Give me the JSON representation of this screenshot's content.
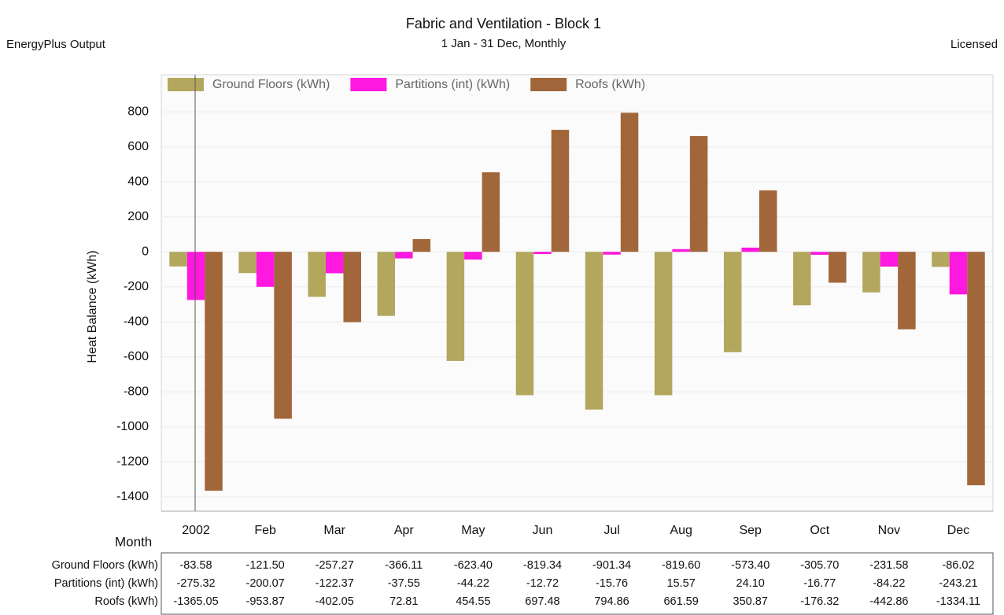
{
  "chart_data": {
    "type": "bar",
    "title": "Fabric and Ventilation - Block 1",
    "subtitle": "1 Jan - 31 Dec, Monthly",
    "header_left": "EnergyPlus Output",
    "header_right": "Licensed",
    "x_label": "Month",
    "y_label": "Heat Balance (kWh)",
    "categories": [
      "2002",
      "Feb",
      "Mar",
      "Apr",
      "May",
      "Jun",
      "Jul",
      "Aug",
      "Sep",
      "Oct",
      "Nov",
      "Dec"
    ],
    "series": [
      {
        "name": "Ground Floors (kWh)",
        "color": "#b3a75e",
        "values": [
          -83.58,
          -121.5,
          -257.27,
          -366.11,
          -623.4,
          -819.34,
          -901.34,
          -819.6,
          -573.4,
          -305.7,
          -231.58,
          -86.02
        ],
        "value_labels": [
          "-83.58",
          "-121.50",
          "-257.27",
          "-366.11",
          "-623.40",
          "-819.34",
          "-901.34",
          "-819.60",
          "-573.40",
          "-305.70",
          "-231.58",
          "-86.02"
        ]
      },
      {
        "name": "Partitions (int) (kWh)",
        "color": "#ff18df",
        "values": [
          -275.32,
          -200.07,
          -122.37,
          -37.55,
          -44.22,
          -12.72,
          -15.76,
          15.57,
          24.1,
          -16.77,
          -84.22,
          -243.21
        ],
        "value_labels": [
          "-275.32",
          "-200.07",
          "-122.37",
          "-37.55",
          "-44.22",
          "-12.72",
          "-15.76",
          "15.57",
          "24.10",
          "-16.77",
          "-84.22",
          "-243.21"
        ]
      },
      {
        "name": "Roofs (kWh)",
        "color": "#a1663a",
        "values": [
          -1365.05,
          -953.87,
          -402.05,
          72.81,
          454.55,
          697.48,
          794.86,
          661.59,
          350.87,
          -176.32,
          -442.86,
          -1334.11
        ],
        "value_labels": [
          "-1365.05",
          "-953.87",
          "-402.05",
          "72.81",
          "454.55",
          "697.48",
          "794.86",
          "661.59",
          "350.87",
          "-176.32",
          "-442.86",
          "-1334.11"
        ]
      }
    ],
    "ylim": [
      -1480,
      900
    ],
    "yticks": [
      -1400,
      -1200,
      -1000,
      -800,
      -600,
      -400,
      -200,
      0,
      200,
      400,
      600,
      800
    ],
    "grid": true,
    "legend": "top-left"
  }
}
